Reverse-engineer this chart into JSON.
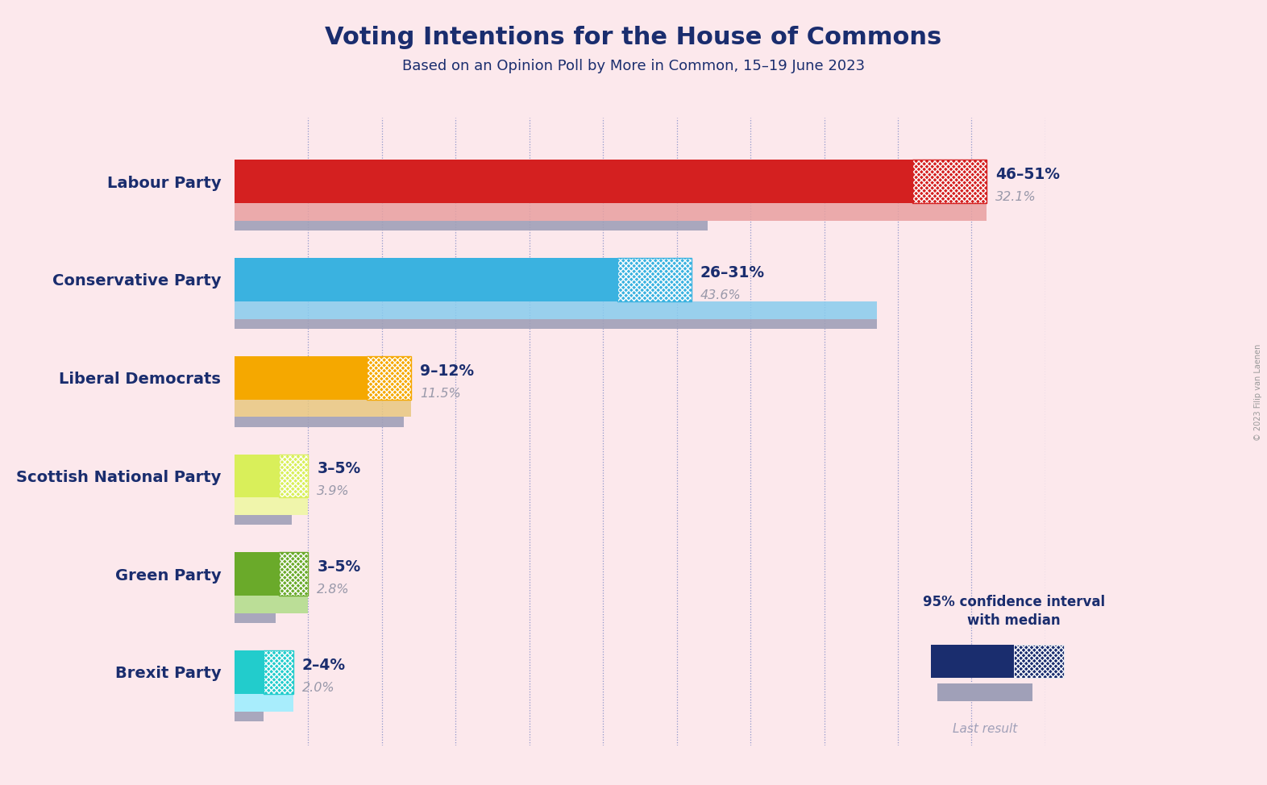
{
  "title": "Voting Intentions for the House of Commons",
  "subtitle": "Based on an Opinion Poll by More in Common, 15–19 June 2023",
  "background_color": "#fce8ec",
  "parties": [
    "Labour Party",
    "Conservative Party",
    "Liberal Democrats",
    "Scottish National Party",
    "Green Party",
    "Brexit Party"
  ],
  "ci_low": [
    46,
    26,
    9,
    3,
    3,
    2
  ],
  "ci_high": [
    51,
    31,
    12,
    5,
    5,
    4
  ],
  "last_result": [
    32.1,
    43.6,
    11.5,
    3.9,
    2.8,
    2.0
  ],
  "range_labels": [
    "46–51%",
    "26–31%",
    "9–12%",
    "3–5%",
    "3–5%",
    "2–4%"
  ],
  "last_labels": [
    "32.1%",
    "43.6%",
    "11.5%",
    "3.9%",
    "2.8%",
    "2.0%"
  ],
  "colors_solid": [
    "#d42020",
    "#3ab2e0",
    "#f5a800",
    "#d9ef5a",
    "#6aaa2a",
    "#22cccc"
  ],
  "colors_light": [
    "#e8a0a0",
    "#88ccee",
    "#e8c880",
    "#eef8a0",
    "#b0dd88",
    "#99eeff"
  ],
  "last_result_color": "#a0a0b8",
  "last_result_color_light": [
    "#e8a0a0",
    "#88ccee",
    "#e8c880",
    "#eef8a0",
    "#b0dd88",
    "#99eeff"
  ],
  "axis_max": 55,
  "title_color": "#1a2d6e",
  "subtitle_color": "#1a2d6e",
  "label_color": "#1a2d6e",
  "range_label_color": "#1a2d6e",
  "last_label_color": "#9999aa",
  "legend_navy": "#1a2d6e",
  "legend_gray": "#a0a0b8",
  "copyright": "© 2023 Filip van Laenen"
}
